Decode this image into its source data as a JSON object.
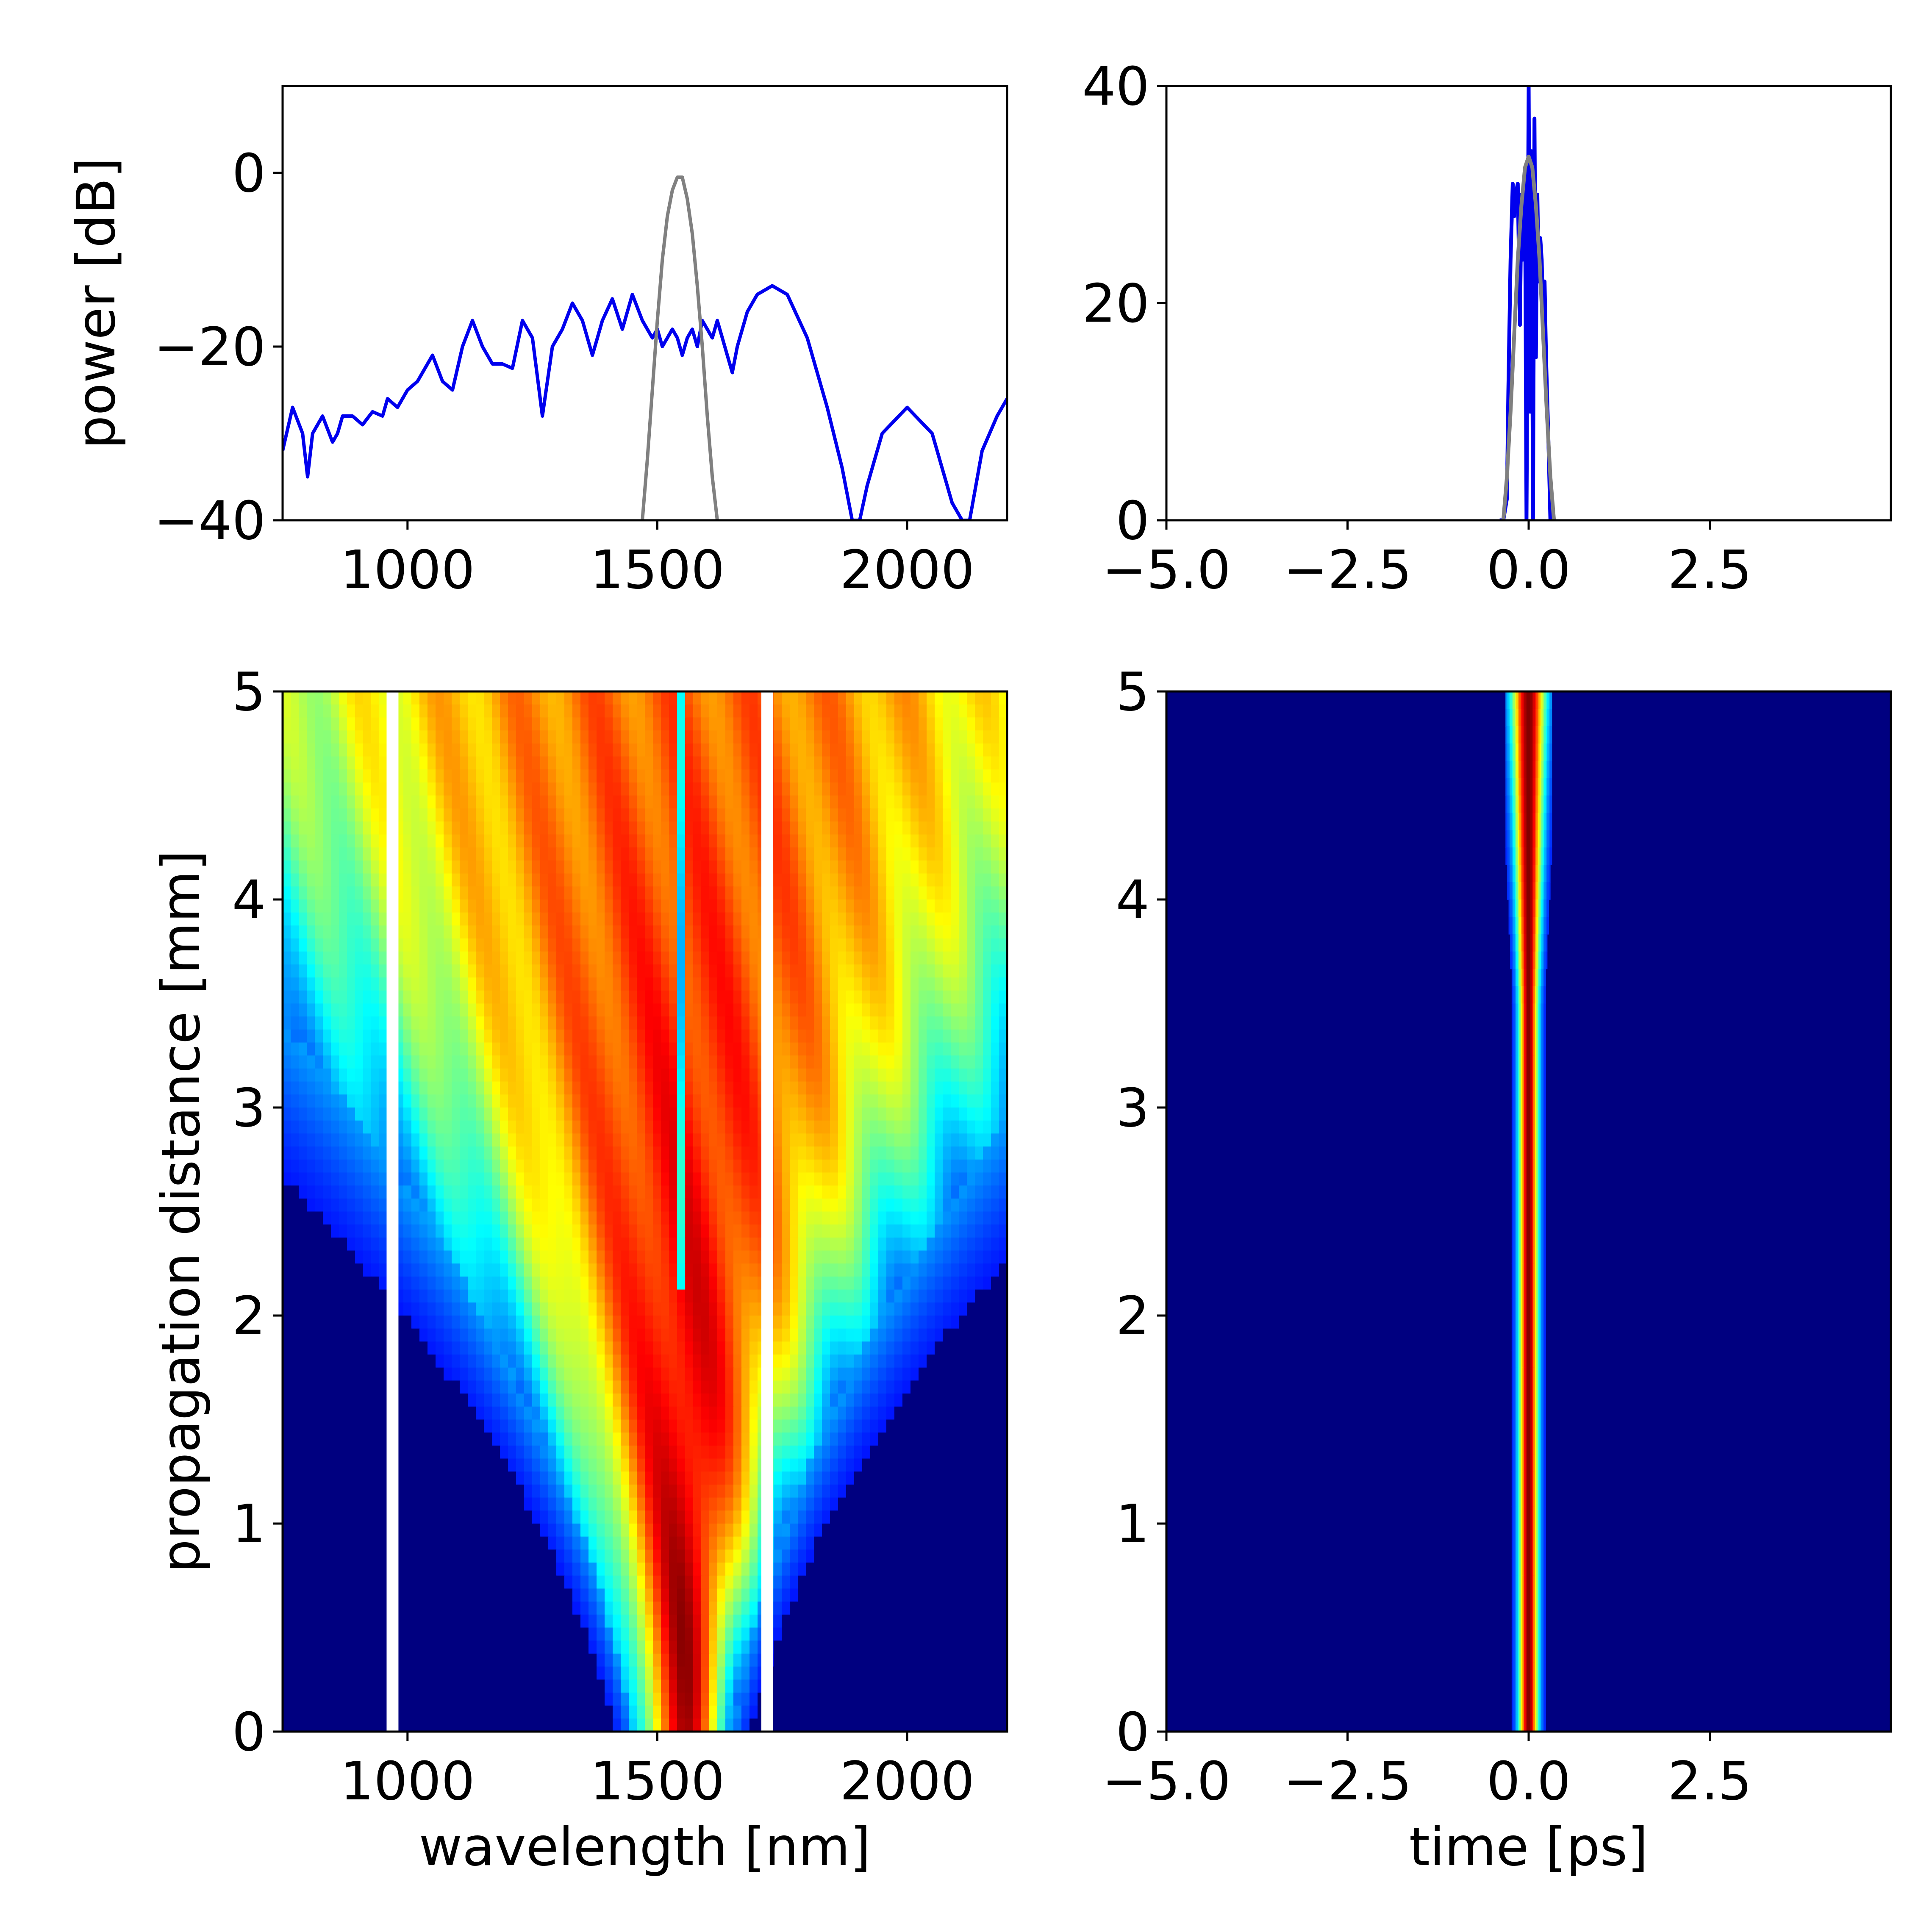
{
  "chart_data": [
    {
      "id": "spectrum",
      "type": "line",
      "xlabel": "",
      "ylabel": "power [dB]",
      "xlim": [
        750,
        2200
      ],
      "ylim": [
        -40,
        10
      ],
      "xticks": [
        1000,
        1500,
        2000
      ],
      "yticks": [
        0,
        -20,
        -40
      ],
      "xtick_labels": [
        "1000",
        "1500",
        "2000"
      ],
      "ytick_labels": [
        "0",
        "−20",
        "−40"
      ],
      "series": [
        {
          "color": "#0000ee",
          "x": [
            750,
            770,
            790,
            800,
            810,
            830,
            850,
            860,
            870,
            890,
            910,
            930,
            950,
            960,
            980,
            1000,
            1020,
            1040,
            1050,
            1070,
            1090,
            1110,
            1130,
            1150,
            1170,
            1190,
            1210,
            1230,
            1250,
            1270,
            1290,
            1310,
            1330,
            1350,
            1370,
            1390,
            1410,
            1430,
            1450,
            1470,
            1490,
            1500,
            1510,
            1520,
            1530,
            1540,
            1550,
            1560,
            1570,
            1580,
            1590,
            1600,
            1610,
            1620,
            1640,
            1650,
            1660,
            1680,
            1700,
            1730,
            1760,
            1800,
            1840,
            1870,
            1890,
            1905,
            1920,
            1950,
            2000,
            2050,
            2090,
            2110,
            2125,
            2150,
            2180,
            2200
          ],
          "y": [
            -32,
            -27,
            -30,
            -35,
            -30,
            -28,
            -31,
            -30,
            -28,
            -28,
            -29,
            -27.5,
            -28,
            -26,
            -27,
            -25,
            -24,
            -22,
            -21,
            -24,
            -25,
            -20,
            -17,
            -20,
            -22,
            -22,
            -22.5,
            -17,
            -19,
            -28,
            -20,
            -18,
            -15,
            -17,
            -21,
            -17,
            -14.5,
            -18,
            -14,
            -17,
            -19,
            -18,
            -20,
            -19,
            -18,
            -19,
            -21,
            -19,
            -18,
            -20,
            -17,
            -18,
            -19,
            -17,
            -21,
            -23,
            -20,
            -16,
            -14,
            -13,
            -14,
            -19,
            -27,
            -34,
            -40,
            -40,
            -36,
            -30,
            -27,
            -30,
            -38,
            -40,
            -40,
            -32,
            -28,
            -26
          ]
        },
        {
          "color": "#808080",
          "x": [
            1470,
            1480,
            1490,
            1500,
            1510,
            1520,
            1530,
            1540,
            1550,
            1560,
            1570,
            1580,
            1590,
            1600,
            1610,
            1620
          ],
          "y": [
            -40,
            -33,
            -25,
            -17,
            -10,
            -5,
            -2,
            -0.5,
            -0.5,
            -3,
            -7,
            -13,
            -20,
            -28,
            -35,
            -40
          ]
        }
      ]
    },
    {
      "id": "temporal-power",
      "type": "line",
      "xlabel": "",
      "ylabel": "",
      "xlim": [
        -5.0,
        5.0
      ],
      "ylim": [
        0,
        40
      ],
      "xticks": [
        -5.0,
        -2.5,
        0.0,
        2.5
      ],
      "yticks": [
        40,
        20,
        0
      ],
      "xtick_labels": [
        "−5.0",
        "−2.5",
        "0.0",
        "2.5"
      ],
      "ytick_labels": [
        "40",
        "20",
        "0"
      ],
      "series": [
        {
          "color": "#0000ee",
          "x": [
            -0.4,
            -0.35,
            -0.3,
            -0.28,
            -0.25,
            -0.22,
            -0.2,
            -0.18,
            -0.15,
            -0.12,
            -0.1,
            -0.08,
            -0.05,
            -0.03,
            0.0,
            0.02,
            0.04,
            0.06,
            0.08,
            0.1,
            0.12,
            0.14,
            0.16,
            0.18,
            0.2,
            0.22,
            0.24,
            0.27,
            0.3
          ],
          "y": [
            0,
            0,
            2,
            12,
            24,
            31,
            28,
            30,
            31,
            18,
            30,
            24,
            32,
            0,
            40,
            10,
            34,
            0,
            37,
            15,
            30,
            22,
            26,
            24,
            18,
            22,
            15,
            8,
            0
          ]
        },
        {
          "color": "#808080",
          "x": [
            -0.35,
            -0.3,
            -0.25,
            -0.2,
            -0.15,
            -0.1,
            -0.05,
            0.0,
            0.05,
            0.1,
            0.15,
            0.2,
            0.25,
            0.3,
            0.35
          ],
          "y": [
            0,
            4,
            10,
            17,
            24,
            29,
            32.5,
            33.5,
            32.5,
            29,
            24,
            17,
            10,
            4,
            0
          ]
        }
      ]
    },
    {
      "id": "spectral-evolution",
      "type": "heatmap",
      "colormap": "jet",
      "xlabel": "wavelength [nm]",
      "ylabel": "propagation distance [mm]",
      "xlim": [
        750,
        2200
      ],
      "ylim": [
        0,
        5
      ],
      "xticks": [
        1000,
        1500,
        2000
      ],
      "yticks": [
        0,
        1,
        2,
        3,
        4,
        5
      ],
      "xtick_labels": [
        "1000",
        "1500",
        "2000"
      ],
      "ytick_labels": [
        "0",
        "1",
        "2",
        "3",
        "4",
        "5"
      ],
      "center_wavelength": 1550,
      "gaps_nm": [
        970,
        1720
      ]
    },
    {
      "id": "temporal-evolution",
      "type": "heatmap",
      "colormap": "jet",
      "xlabel": "time [ps]",
      "ylabel": "",
      "xlim": [
        -5.0,
        5.0
      ],
      "ylim": [
        0,
        5
      ],
      "xticks": [
        -5.0,
        -2.5,
        0.0,
        2.5
      ],
      "yticks": [
        0,
        1,
        2,
        3,
        4,
        5
      ],
      "xtick_labels": [
        "−5.0",
        "−2.5",
        "0.0",
        "2.5"
      ],
      "ytick_labels": [
        "0",
        "1",
        "2",
        "3",
        "4",
        "5"
      ],
      "pulse_center_ps": 0.0
    }
  ]
}
